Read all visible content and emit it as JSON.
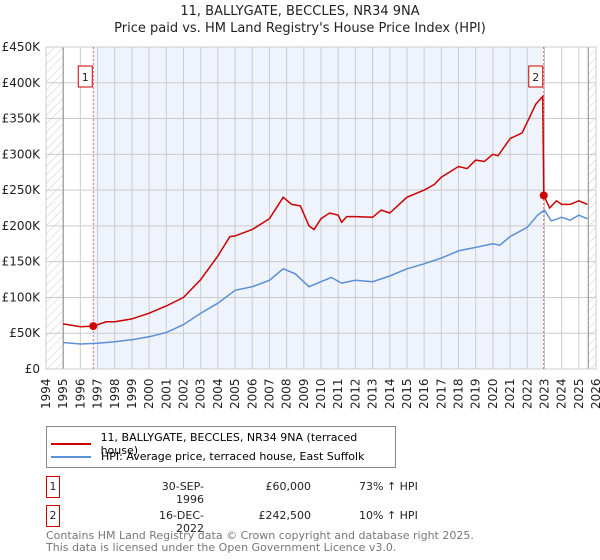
{
  "chart_data": {
    "type": "line",
    "title": "11, BALLYGATE, BECCLES, NR34 9NA",
    "subtitle": "Price paid vs. HM Land Registry's House Price Index (HPI)",
    "xlim": [
      1994,
      2026
    ],
    "ylim": [
      0,
      450000
    ],
    "xticks": [
      "1994",
      "1995",
      "1996",
      "1997",
      "1998",
      "1999",
      "2000",
      "2001",
      "2002",
      "2003",
      "2004",
      "2005",
      "2006",
      "2007",
      "2008",
      "2009",
      "2010",
      "2011",
      "2012",
      "2013",
      "2014",
      "2015",
      "2016",
      "2017",
      "2018",
      "2019",
      "2020",
      "2021",
      "2022",
      "2023",
      "2024",
      "2025",
      "2026"
    ],
    "yticks": [
      {
        "v": 0,
        "label": "£0"
      },
      {
        "v": 50000,
        "label": "£50K"
      },
      {
        "v": 100000,
        "label": "£100K"
      },
      {
        "v": 150000,
        "label": "£150K"
      },
      {
        "v": 200000,
        "label": "£200K"
      },
      {
        "v": 250000,
        "label": "£250K"
      },
      {
        "v": 300000,
        "label": "£300K"
      },
      {
        "v": 350000,
        "label": "£350K"
      },
      {
        "v": 400000,
        "label": "£400K"
      },
      {
        "v": 450000,
        "label": "£450K"
      }
    ],
    "grid": true,
    "series": [
      {
        "name": "11, BALLYGATE, BECCLES, NR34 9NA (terraced house)",
        "color": "#cc0000",
        "x": [
          1995,
          1996,
          1996.75,
          1997.5,
          1998,
          1999,
          2000,
          2001,
          2002,
          2003,
          2004,
          2004.7,
          2005,
          2006,
          2007,
          2007.8,
          2008.3,
          2008.8,
          2009.3,
          2009.6,
          2010,
          2010.5,
          2011,
          2011.2,
          2011.5,
          2012,
          2013,
          2013.5,
          2014,
          2015,
          2016,
          2016.6,
          2017,
          2018,
          2018.5,
          2019,
          2019.5,
          2020,
          2020.3,
          2021,
          2021.7,
          2022,
          2022.5,
          2022.9,
          2022.96,
          2023.3,
          2023.7,
          2024,
          2024.5,
          2025,
          2025.5
        ],
        "y": [
          63000,
          59000,
          60000,
          66000,
          66000,
          70000,
          78000,
          88000,
          100000,
          125000,
          158000,
          185000,
          186000,
          195000,
          210000,
          240000,
          230000,
          228000,
          200000,
          195000,
          210000,
          218000,
          215000,
          205000,
          213000,
          213000,
          212000,
          222000,
          218000,
          240000,
          250000,
          258000,
          268000,
          283000,
          280000,
          292000,
          290000,
          300000,
          298000,
          322000,
          330000,
          345000,
          370000,
          381000,
          242500,
          225000,
          235000,
          230000,
          230000,
          235000,
          230000
        ]
      },
      {
        "name": "HPI: Average price, terraced house, East Suffolk",
        "color": "#5b8fd6",
        "x": [
          1995,
          1996,
          1997,
          1998,
          1999,
          2000,
          2001,
          2002,
          2003,
          2004,
          2005,
          2006,
          2007,
          2007.8,
          2008.5,
          2009.3,
          2010,
          2010.6,
          2011.2,
          2012,
          2013,
          2014,
          2015,
          2016,
          2017,
          2018,
          2019,
          2020,
          2020.4,
          2021,
          2022,
          2022.6,
          2023,
          2023.4,
          2024,
          2024.5,
          2025,
          2025.5
        ],
        "y": [
          37000,
          35000,
          36000,
          38000,
          41000,
          45000,
          51000,
          62000,
          78000,
          92000,
          110000,
          115000,
          124000,
          140000,
          133000,
          115000,
          122000,
          128000,
          120000,
          124000,
          122000,
          130000,
          140000,
          147000,
          155000,
          165000,
          170000,
          175000,
          173000,
          185000,
          198000,
          215000,
          222000,
          207000,
          212000,
          208000,
          215000,
          210000
        ]
      }
    ],
    "annotations": [
      {
        "label": "1",
        "x": 1996.75,
        "y": 60000
      },
      {
        "label": "2",
        "x": 2022.96,
        "y": 242500
      }
    ],
    "legend_placement": "below"
  },
  "legend": {
    "red": "11, BALLYGATE, BECCLES, NR34 9NA (terraced house)",
    "blue": "HPI: Average price, terraced house, East Suffolk"
  },
  "sales": [
    {
      "num": "1",
      "date": "30-SEP-1996",
      "price": "£60,000",
      "hpi": "73% ↑ HPI"
    },
    {
      "num": "2",
      "date": "16-DEC-2022",
      "price": "£242,500",
      "hpi": "10% ↑ HPI"
    }
  ],
  "footer": {
    "line1": "Contains HM Land Registry data © Crown copyright and database right 2025.",
    "line2": "This data is licensed under the Open Government Licence v3.0."
  }
}
